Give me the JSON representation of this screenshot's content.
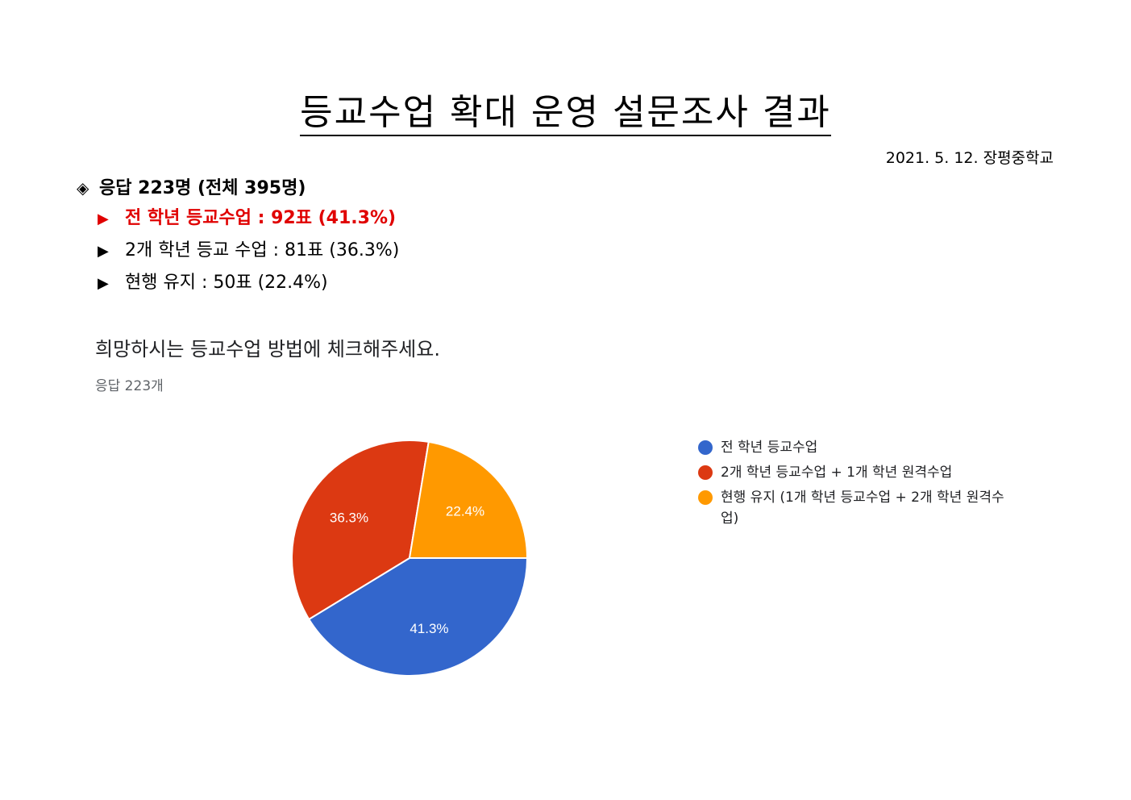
{
  "document": {
    "title": "등교수업 확대 운영 설문조사 결과",
    "date_school": "2021. 5. 12. 장평중학교"
  },
  "summary": {
    "bullet_symbol": "◈",
    "heading": "응답 223명 (전체 395명)",
    "arrow_symbol": "▶",
    "results": [
      {
        "text": "전 학년 등교수업 : 92표 (41.3%)",
        "highlight": true
      },
      {
        "text": "2개 학년 등교 수업 : 81표 (36.3%)",
        "highlight": false
      },
      {
        "text": "현행 유지 : 50표 (22.4%)",
        "highlight": false
      }
    ]
  },
  "form": {
    "question": "희망하시는 등교수업 방법에 체크해주세요.",
    "response_count": "응답 223개"
  },
  "chart_data": {
    "type": "pie",
    "categories": [
      "전 학년 등교수업",
      "2개 학년 등교수업 + 1개 학년 원격수업",
      "현행 유지 (1개 학년 등교수업 + 2개 학년 원격수업)"
    ],
    "values": [
      41.3,
      36.3,
      22.4
    ],
    "labels": [
      "41.3%",
      "36.3%",
      "22.4%"
    ],
    "colors": [
      "#3366cc",
      "#dc3912",
      "#ff9900"
    ],
    "legend_position": "right"
  }
}
